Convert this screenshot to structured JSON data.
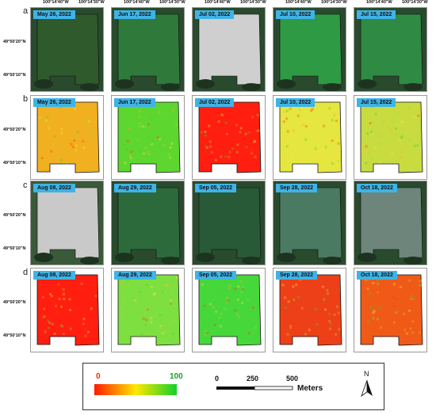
{
  "rows": [
    {
      "label": "a",
      "type": "rgb",
      "dates": [
        "May 26, 2022",
        "Jun 17, 2022",
        "Jul 02, 2022",
        "Jul 10, 2022",
        "Jul 15, 2022"
      ]
    },
    {
      "label": "b",
      "type": "index",
      "dates": [
        "May 26, 2022",
        "Jun 17, 2022",
        "Jul 02, 2022",
        "Jul 10, 2022",
        "Jul 15, 2022"
      ]
    },
    {
      "label": "c",
      "type": "rgb",
      "dates": [
        "Aug 08, 2022",
        "Aug 29, 2022",
        "Sep 05, 2022",
        "Sep 28, 2022",
        "Oct 18, 2022"
      ]
    },
    {
      "label": "d",
      "type": "index",
      "dates": [
        "Aug 08, 2022",
        "Aug 29, 2022",
        "Sep 05, 2022",
        "Sep 28, 2022",
        "Oct 18, 2022"
      ]
    }
  ],
  "coords": {
    "lon_a": "100°14'40\"W",
    "lon_b": "100°14'30\"W",
    "lat_a": "49°50'20\"N",
    "lat_b": "49°50'10\"N"
  },
  "legend": {
    "min": "0",
    "max": "100",
    "scale_ticks": [
      "0",
      "250",
      "500"
    ],
    "scale_unit": "Meters",
    "north": "N"
  },
  "colors": {
    "label_bg": "#3fb3e6",
    "index_low": "#ff1a00",
    "index_mid": "#ffe800",
    "index_high": "#12d12a"
  },
  "panel_colors": {
    "a": [
      "#2f5a2c",
      "#2f7a3a",
      "#cfcfcf",
      "#2e9a44",
      "#2f8a44"
    ],
    "b": [
      "#f0b020",
      "#5ed630",
      "#ff1e10",
      "#e5e640",
      "#c8dc40"
    ],
    "c": [
      "#c9c9c9",
      "#2c6a3c",
      "#285a38",
      "#4a7a62",
      "#6d857b"
    ],
    "d": [
      "#ff1e10",
      "#7ee040",
      "#46d83a",
      "#ee4018",
      "#f05a18"
    ]
  }
}
